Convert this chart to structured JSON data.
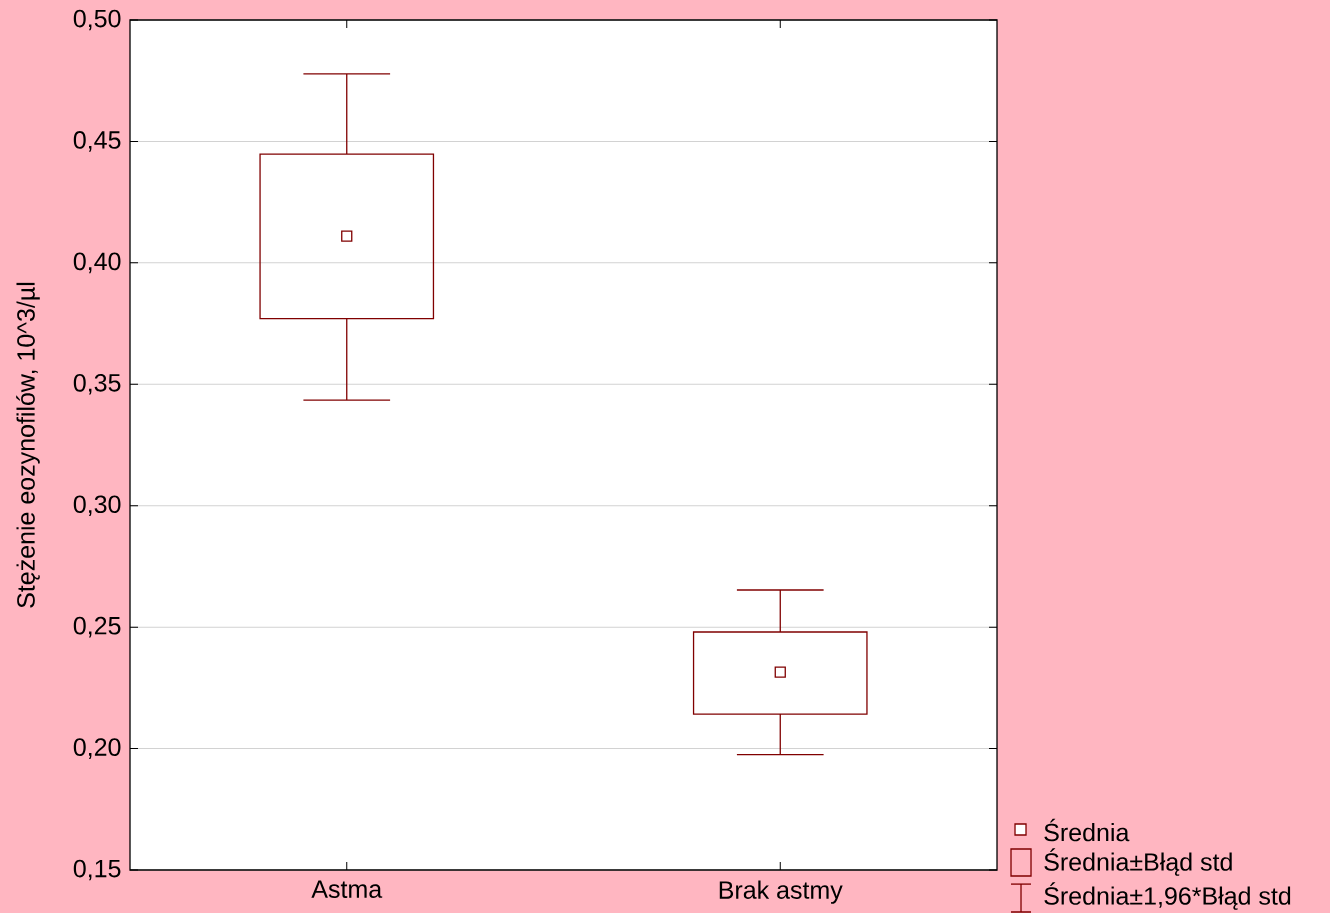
{
  "chart_data": {
    "type": "box",
    "ylabel": "Stężenie eozynofilów,  10^3/µl",
    "categories": [
      "Astma",
      "Brak astmy"
    ],
    "boxes": [
      {
        "low": 0.3435,
        "q1": 0.377,
        "q3": 0.4448,
        "high": 0.4778,
        "mean": 0.411
      },
      {
        "low": 0.1975,
        "q1": 0.2142,
        "q3": 0.248,
        "high": 0.2653,
        "mean": 0.2315
      }
    ],
    "color": "#800000",
    "ylim": [
      0.15,
      0.5
    ],
    "yticks": [
      {
        "value": 0.15,
        "label": "0,15"
      },
      {
        "value": 0.2,
        "label": "0,20"
      },
      {
        "value": 0.25,
        "label": "0,25"
      },
      {
        "value": 0.3,
        "label": "0,30"
      },
      {
        "value": 0.35,
        "label": "0,35"
      },
      {
        "value": 0.4,
        "label": "0,40"
      },
      {
        "value": 0.45,
        "label": "0,45"
      },
      {
        "value": 0.5,
        "label": "0,50"
      }
    ],
    "grid": "y",
    "marker": "square",
    "annotations": [
      "Średnia",
      "Średnia±Błąd std",
      "Średnia±1,96*Błąd std"
    ]
  }
}
